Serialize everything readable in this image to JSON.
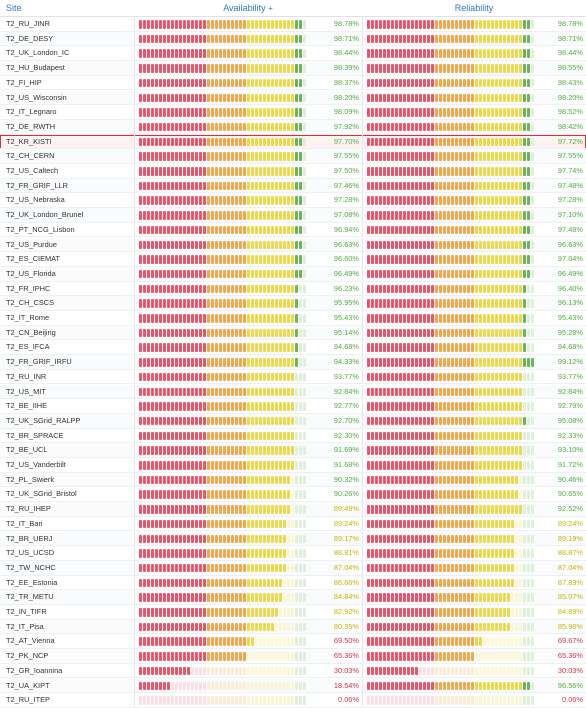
{
  "header": {
    "site": "Site",
    "availability": "Availability",
    "availability_sort_icon": "+",
    "reliability": "Reliability"
  },
  "colors": {
    "green_text": "#56ad41",
    "yellow_text": "#c9b400",
    "red_text": "#d63346",
    "header_text": "#2e7bc4",
    "selected_border": "#d4323a"
  },
  "selected_site": "T2_KR_KISTI",
  "rows": [
    {
      "site": "T2_RU_JINR",
      "availability": "98.78%",
      "reliability": "98.78%",
      "a": 0.9878,
      "r": 0.9878
    },
    {
      "site": "T2_DE_DESY",
      "availability": "98.71%",
      "reliability": "98.71%",
      "a": 0.9871,
      "r": 0.9871
    },
    {
      "site": "T2_UK_London_IC",
      "availability": "98.44%",
      "reliability": "98.44%",
      "a": 0.9844,
      "r": 0.9844
    },
    {
      "site": "T2_HU_Budapest",
      "availability": "98.39%",
      "reliability": "98.55%",
      "a": 0.9839,
      "r": 0.9855
    },
    {
      "site": "T2_FI_HIP",
      "availability": "98.37%",
      "reliability": "98.43%",
      "a": 0.9837,
      "r": 0.9843
    },
    {
      "site": "T2_US_Wisconsin",
      "availability": "98.20%",
      "reliability": "98.20%",
      "a": 0.982,
      "r": 0.982
    },
    {
      "site": "T2_IT_Legnaro",
      "availability": "98.09%",
      "reliability": "98.52%",
      "a": 0.9809,
      "r": 0.9852
    },
    {
      "site": "T2_DE_RWTH",
      "availability": "97.92%",
      "reliability": "98.42%",
      "a": 0.9792,
      "r": 0.9842
    },
    {
      "site": "T2_KR_KISTI",
      "availability": "97.70%",
      "reliability": "97.72%",
      "a": 0.977,
      "r": 0.9772
    },
    {
      "site": "T2_CH_CERN",
      "availability": "97.55%",
      "reliability": "97.55%",
      "a": 0.9755,
      "r": 0.9755
    },
    {
      "site": "T2_US_Caltech",
      "availability": "97.50%",
      "reliability": "97.74%",
      "a": 0.975,
      "r": 0.9774
    },
    {
      "site": "T2_FR_GRIF_LLR",
      "availability": "97.46%",
      "reliability": "97.48%",
      "a": 0.9746,
      "r": 0.9748
    },
    {
      "site": "T2_US_Nebraska",
      "availability": "97.28%",
      "reliability": "97.28%",
      "a": 0.9728,
      "r": 0.9728
    },
    {
      "site": "T2_UK_London_Brunel",
      "availability": "97.08%",
      "reliability": "97.10%",
      "a": 0.9708,
      "r": 0.971
    },
    {
      "site": "T2_PT_NCG_Lisbon",
      "availability": "96.94%",
      "reliability": "97.48%",
      "a": 0.9694,
      "r": 0.9748
    },
    {
      "site": "T2_US_Purdue",
      "availability": "96.63%",
      "reliability": "96.63%",
      "a": 0.9663,
      "r": 0.9663
    },
    {
      "site": "T2_ES_CIEMAT",
      "availability": "96.60%",
      "reliability": "97.04%",
      "a": 0.966,
      "r": 0.9704
    },
    {
      "site": "T2_US_Florida",
      "availability": "96.49%",
      "reliability": "96.49%",
      "a": 0.9649,
      "r": 0.9649
    },
    {
      "site": "T2_FR_IPHC",
      "availability": "96.23%",
      "reliability": "96.40%",
      "a": 0.9623,
      "r": 0.964
    },
    {
      "site": "T2_CH_CSCS",
      "availability": "95.95%",
      "reliability": "96.13%",
      "a": 0.9595,
      "r": 0.9613
    },
    {
      "site": "T2_IT_Rome",
      "availability": "95.43%",
      "reliability": "95.43%",
      "a": 0.9543,
      "r": 0.9543
    },
    {
      "site": "T2_CN_Beijing",
      "availability": "95.14%",
      "reliability": "95.28%",
      "a": 0.9514,
      "r": 0.9528
    },
    {
      "site": "T2_ES_IFCA",
      "availability": "94.68%",
      "reliability": "94.68%",
      "a": 0.9468,
      "r": 0.9468
    },
    {
      "site": "T2_FR_GRIF_IRFU",
      "availability": "94.33%",
      "reliability": "99.12%",
      "a": 0.9433,
      "r": 0.9912
    },
    {
      "site": "T2_RU_INR",
      "availability": "93.77%",
      "reliability": "93.77%",
      "a": 0.9377,
      "r": 0.9377
    },
    {
      "site": "T2_US_MIT",
      "availability": "92.84%",
      "reliability": "92.84%",
      "a": 0.9284,
      "r": 0.9284
    },
    {
      "site": "T2_BE_IIHE",
      "availability": "92.77%",
      "reliability": "92.79%",
      "a": 0.9277,
      "r": 0.9279
    },
    {
      "site": "T2_UK_SGrid_RALPP",
      "availability": "92.70%",
      "reliability": "95.08%",
      "a": 0.927,
      "r": 0.9508
    },
    {
      "site": "T2_BR_SPRACE",
      "availability": "92.30%",
      "reliability": "92.33%",
      "a": 0.923,
      "r": 0.9233
    },
    {
      "site": "T2_BE_UCL",
      "availability": "91.69%",
      "reliability": "93.10%",
      "a": 0.9169,
      "r": 0.931
    },
    {
      "site": "T2_US_Vanderbilt",
      "availability": "91.68%",
      "reliability": "91.72%",
      "a": 0.9168,
      "r": 0.9172
    },
    {
      "site": "T2_PL_Swierk",
      "availability": "90.32%",
      "reliability": "90.46%",
      "a": 0.9032,
      "r": 0.9046
    },
    {
      "site": "T2_UK_SGrid_Bristol",
      "availability": "90.26%",
      "reliability": "90.65%",
      "a": 0.9026,
      "r": 0.9065
    },
    {
      "site": "T2_RU_IHEP",
      "availability": "89.49%",
      "reliability": "92.52%",
      "a": 0.8949,
      "r": 0.9252
    },
    {
      "site": "T2_IT_Bari",
      "availability": "89.24%",
      "reliability": "89.24%",
      "a": 0.8924,
      "r": 0.8924
    },
    {
      "site": "T2_BR_UERJ",
      "availability": "89.17%",
      "reliability": "89.19%",
      "a": 0.8917,
      "r": 0.8919
    },
    {
      "site": "T2_US_UCSD",
      "availability": "88.81%",
      "reliability": "88.87%",
      "a": 0.8881,
      "r": 0.8887
    },
    {
      "site": "T2_TW_NCHC",
      "availability": "87.04%",
      "reliability": "87.04%",
      "a": 0.8704,
      "r": 0.8704
    },
    {
      "site": "T2_EE_Estonia",
      "availability": "86.66%",
      "reliability": "87.83%",
      "a": 0.8666,
      "r": 0.8783
    },
    {
      "site": "T2_TR_METU",
      "availability": "84.84%",
      "reliability": "85.07%",
      "a": 0.8484,
      "r": 0.8507
    },
    {
      "site": "T2_IN_TIFR",
      "availability": "82.92%",
      "reliability": "84.89%",
      "a": 0.8292,
      "r": 0.8489
    },
    {
      "site": "T2_IT_Pisa",
      "availability": "80.35%",
      "reliability": "85.96%",
      "a": 0.8035,
      "r": 0.8596
    },
    {
      "site": "T2_AT_Vienna",
      "availability": "69.50%",
      "reliability": "69.67%",
      "a": 0.695,
      "r": 0.6967
    },
    {
      "site": "T2_PK_NCP",
      "availability": "65.36%",
      "reliability": "65.36%",
      "a": 0.6536,
      "r": 0.6536
    },
    {
      "site": "T2_GR_Ioannina",
      "availability": "30.03%",
      "reliability": "30.03%",
      "a": 0.3003,
      "r": 0.3003
    },
    {
      "site": "T2_UA_KIPT",
      "availability": "18.54%",
      "reliability": "96.56%",
      "a": 0.1854,
      "r": 0.9656
    },
    {
      "site": "T2_RU_ITEP",
      "availability": "0.06%",
      "reliability": "0.06%",
      "a": 0.0006,
      "r": 0.0006
    }
  ]
}
